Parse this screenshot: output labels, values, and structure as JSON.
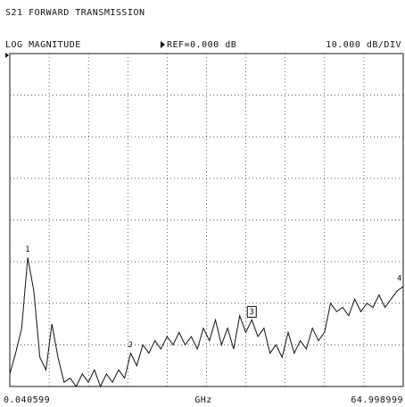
{
  "chart_data": {
    "type": "line",
    "title": "S21 FORWARD TRANSMISSION",
    "format": "LOG MAGNITUDE",
    "reference": "REF=0.000 dB",
    "scale": "10.000 dB/DIV",
    "xlabel": "GHz",
    "color": "#111111",
    "x": [
      0.040599,
      1,
      2,
      3,
      4,
      5,
      6,
      7,
      8,
      9,
      10,
      11,
      12,
      13,
      14,
      15,
      16,
      17,
      18,
      19,
      20,
      21,
      22,
      23,
      24,
      25,
      26,
      27,
      28,
      29,
      30,
      31,
      32,
      33,
      34,
      35,
      36,
      37,
      38,
      39,
      40,
      41,
      42,
      43,
      44,
      45,
      46,
      47,
      48,
      49,
      50,
      51,
      52,
      53,
      54,
      55,
      56,
      57,
      58,
      59,
      60,
      61,
      62,
      63,
      64,
      64.998999
    ],
    "values": [
      -77,
      -72,
      -66,
      -49,
      -57,
      -73,
      -76,
      -65,
      -73,
      -79,
      -78,
      -80,
      -77,
      -79,
      -76,
      -80,
      -77,
      -79,
      -76,
      -78,
      -72,
      -75,
      -70,
      -72,
      -69,
      -71,
      -68,
      -70,
      -67,
      -70,
      -68,
      -71,
      -66,
      -69,
      -64,
      -70,
      -66,
      -71,
      -63,
      -67,
      -64,
      -68,
      -66,
      -72,
      -70,
      -73,
      -67,
      -72,
      -69,
      -71,
      -66,
      -69,
      -67,
      -60,
      -62,
      -61,
      -63,
      -59,
      -62,
      -60,
      -61,
      -58,
      -61,
      -59,
      -57,
      -56
    ],
    "markers": [
      {
        "label": "1",
        "point": 3
      },
      {
        "label": "2",
        "point": 20
      },
      {
        "label": "3",
        "point": 40,
        "active": true
      },
      {
        "label": "4",
        "point": 65
      }
    ],
    "xlim": [
      0.040599,
      64.998999
    ],
    "xticks": [
      0.040599,
      6.536439,
      13.032279,
      19.528119,
      26.023959,
      32.519799,
      39.015639,
      45.511479,
      52.007319,
      58.503159,
      64.998999
    ],
    "ylim": [
      -80,
      0
    ],
    "yticks": [
      -80,
      -70,
      -60,
      -50,
      -40,
      -30,
      -20,
      -10,
      0
    ],
    "grid": true
  }
}
